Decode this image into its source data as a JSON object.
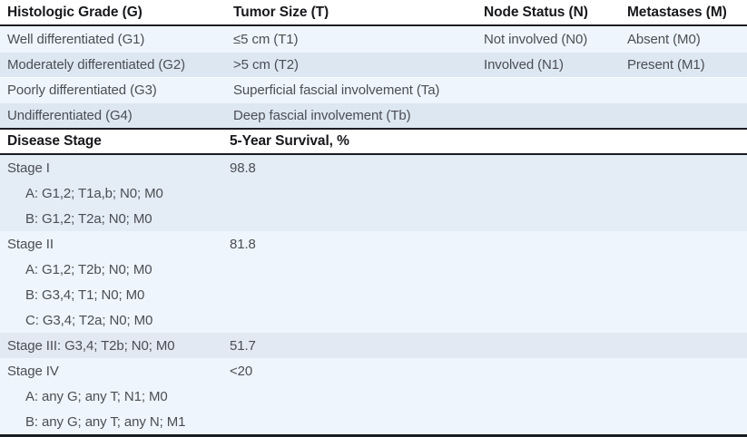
{
  "colors": {
    "bg": "#ffffff",
    "rule": "#1a1c23",
    "stripe_light": "#eef5fc",
    "stripe_dark": "#dde7f2",
    "band_medium": "#e4ecf6",
    "band_gray": "#e3e9f2",
    "header_text": "#17181c",
    "body_text": "#4b4e54"
  },
  "grade_table": {
    "headers": [
      "Histologic Grade (G)",
      "Tumor Size (T)",
      "Node Status (N)",
      "Metastases (M)"
    ],
    "rows": [
      {
        "grade": "Well differentiated (G1)",
        "tumor": "≤5 cm (T1)",
        "node": "Not involved (N0)",
        "mets": "Absent (M0)"
      },
      {
        "grade": "Moderately differentiated (G2)",
        "tumor": ">5 cm (T2)",
        "node": "Involved (N1)",
        "mets": "Present (M1)"
      },
      {
        "grade": "Poorly differentiated (G3)",
        "tumor": "Superficial fascial involvement (Ta)",
        "node": "",
        "mets": ""
      },
      {
        "grade": "Undifferentiated (G4)",
        "tumor": "Deep fascial involvement (Tb)",
        "node": "",
        "mets": ""
      }
    ]
  },
  "stage_table": {
    "headers": [
      "Disease Stage",
      "5-Year Survival, %"
    ],
    "rows": [
      {
        "label": "Stage I",
        "survival": "98.8"
      },
      {
        "label": "A: G1,2; T1a,b; N0; M0",
        "survival": ""
      },
      {
        "label": "B: G1,2; T2a; N0; M0",
        "survival": ""
      },
      {
        "label": "Stage II",
        "survival": "81.8"
      },
      {
        "label": "A: G1,2; T2b; N0; M0",
        "survival": ""
      },
      {
        "label": "B: G3,4; T1; N0; M0",
        "survival": ""
      },
      {
        "label": "C: G3,4; T2a; N0; M0",
        "survival": ""
      },
      {
        "label": "Stage III: G3,4; T2b; N0; M0",
        "survival": "51.7"
      },
      {
        "label": "Stage IV",
        "survival": "<20"
      },
      {
        "label": "A: any G; any T; N1; M0",
        "survival": ""
      },
      {
        "label": "B: any G; any T; any N; M1",
        "survival": ""
      }
    ]
  }
}
